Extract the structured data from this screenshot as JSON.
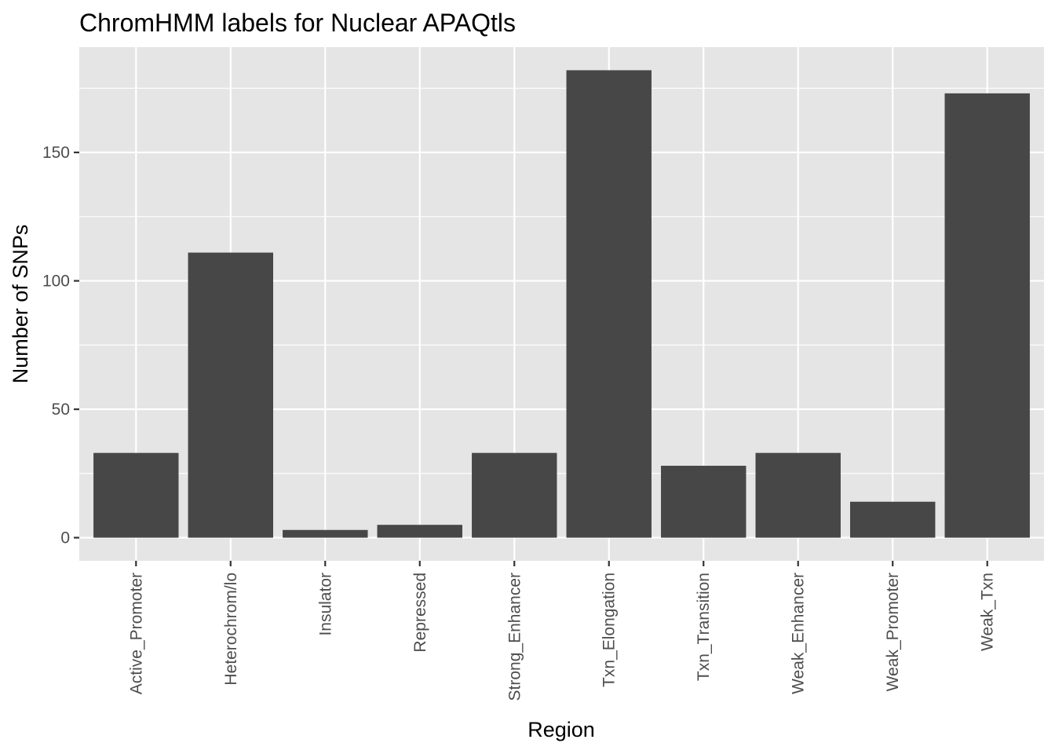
{
  "chart_data": {
    "type": "bar",
    "title": "ChromHMM labels for Nuclear APAQtls",
    "xlabel": "Region",
    "ylabel": "Number of SNPs",
    "categories": [
      "Active_Promoter",
      "Heterochrom/lo",
      "Insulator",
      "Repressed",
      "Strong_Enhancer",
      "Txn_Elongation",
      "Txn_Transition",
      "Weak_Enhancer",
      "Weak_Promoter",
      "Weak_Txn"
    ],
    "values": [
      33,
      111,
      3,
      5,
      33,
      182,
      28,
      33,
      14,
      173
    ],
    "ylim": [
      -9,
      191
    ],
    "yticks": [
      0,
      50,
      100,
      150
    ],
    "grid": true,
    "colors": {
      "bar": "#474747",
      "panel": "#e5e5e5",
      "grid": "#ffffff",
      "tick": "#333333"
    }
  }
}
